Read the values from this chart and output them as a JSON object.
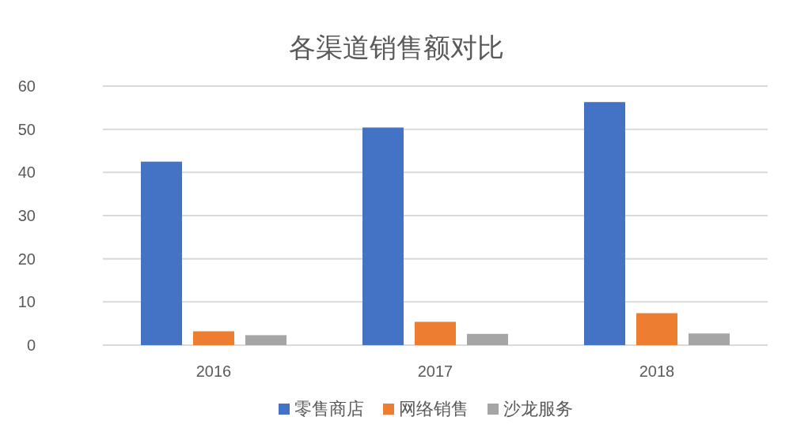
{
  "chart_data": {
    "type": "bar",
    "title": "各渠道销售额对比",
    "categories": [
      "2016",
      "2017",
      "2018"
    ],
    "series": [
      {
        "name": "零售商店",
        "color": "#4472c4",
        "values": [
          42.5,
          50.4,
          56.3
        ]
      },
      {
        "name": "网络销售",
        "color": "#ed7d31",
        "values": [
          3.2,
          5.4,
          7.4
        ]
      },
      {
        "name": "沙龙服务",
        "color": "#a5a5a5",
        "values": [
          2.3,
          2.6,
          2.7
        ]
      }
    ],
    "ylim": [
      0,
      60
    ],
    "yticks": [
      0,
      10,
      20,
      30,
      40,
      50,
      60
    ],
    "grid": "y",
    "legend": "bottom"
  }
}
